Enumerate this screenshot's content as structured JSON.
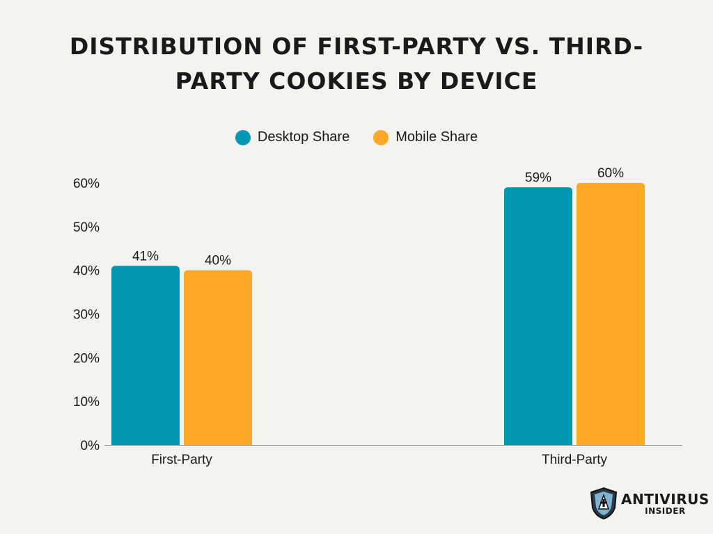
{
  "title": "Distribution of First-Party vs. Third-Party Cookies by Device",
  "colors": {
    "desktop": "#0197b2",
    "mobile": "#fea82a",
    "text": "#1a1a1a",
    "background": "#f3f3ef"
  },
  "logo": {
    "line1": "ANTIVIRUS",
    "line2": "INSIDER",
    "icon": "shield-icon"
  },
  "chart_data": {
    "type": "bar",
    "title": "Distribution of First-Party vs. Third-Party Cookies by Device",
    "categories": [
      "First-Party",
      "Third-Party"
    ],
    "series": [
      {
        "name": "Desktop Share",
        "values": [
          41,
          59
        ],
        "labels": [
          "41%",
          "59%"
        ]
      },
      {
        "name": "Mobile Share",
        "values": [
          40,
          60
        ],
        "labels": [
          "40%",
          "60%"
        ]
      }
    ],
    "ylim": [
      0,
      60
    ],
    "yticks": [
      "0%",
      "10%",
      "20%",
      "30%",
      "40%",
      "50%",
      "60%"
    ],
    "xlabel": "",
    "ylabel": "",
    "grid": false,
    "legend_position": "top-center"
  }
}
